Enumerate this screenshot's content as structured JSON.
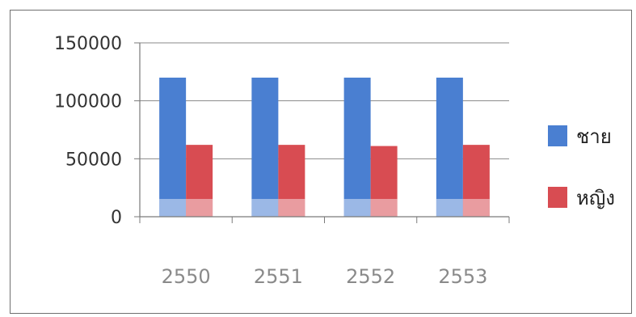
{
  "chart_data": {
    "type": "bar",
    "title": "",
    "xlabel": "",
    "ylabel": "",
    "categories": [
      "2550",
      "2551",
      "2552",
      "2553"
    ],
    "series": [
      {
        "name": "ชาย",
        "color": "#4a7fd1",
        "values": [
          120000,
          120000,
          120000,
          120000
        ]
      },
      {
        "name": "หญิง",
        "color": "#d84c52",
        "values": [
          62000,
          62000,
          61000,
          62000
        ]
      }
    ],
    "ylim": [
      0,
      150000
    ],
    "yticks": [
      0,
      50000,
      100000,
      150000
    ],
    "ytick_labels": [
      "0",
      "50000",
      "100000",
      "150000"
    ],
    "grid": true,
    "legend_position": "right"
  }
}
